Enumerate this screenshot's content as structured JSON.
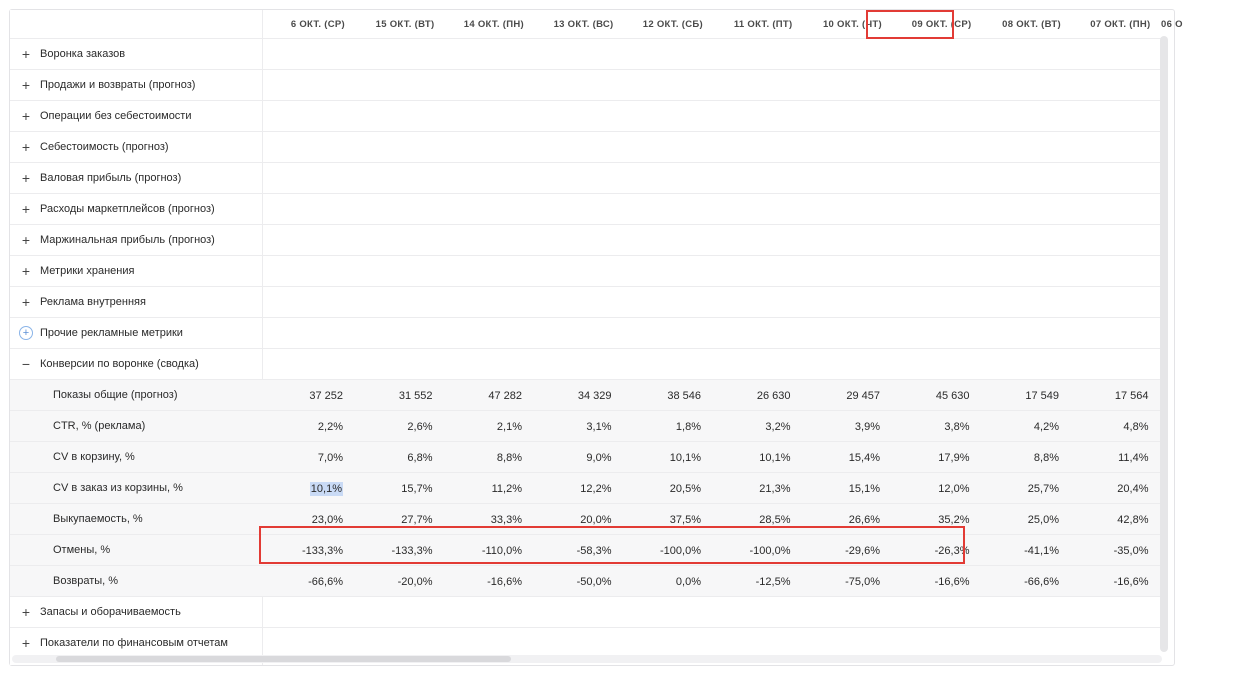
{
  "dates": [
    "6 ОКТ. (СР)",
    "15 ОКТ. (ВТ)",
    "14 ОКТ. (ПН)",
    "13 ОКТ. (ВС)",
    "12 ОКТ. (СБ)",
    "11 ОКТ. (ПТ)",
    "10 ОКТ. (ЧТ)",
    "09 ОКТ. (СР)",
    "08 ОКТ. (ВТ)",
    "07 ОКТ. (ПН)",
    "06 О"
  ],
  "groups_top": [
    {
      "label": "Воронка заказов",
      "expander": "+"
    },
    {
      "label": "Продажи и возвраты (прогноз)",
      "expander": "+"
    },
    {
      "label": "Операции без себестоимости",
      "expander": "+"
    },
    {
      "label": "Себестоимость (прогноз)",
      "expander": "+"
    },
    {
      "label": "Валовая прибыль (прогноз)",
      "expander": "+"
    },
    {
      "label": "Расходы маркетплейсов (прогноз)",
      "expander": "+"
    },
    {
      "label": "Маржинальная прибыль (прогноз)",
      "expander": "+"
    },
    {
      "label": "Метрики хранения",
      "expander": "+"
    },
    {
      "label": "Реклама внутренняя",
      "expander": "+"
    },
    {
      "label": "Прочие рекламные метрики",
      "expander": "+"
    },
    {
      "label": "Конверсии по воронке (сводка)",
      "expander": "−"
    }
  ],
  "metrics": [
    {
      "label": "Показы общие (прогноз)",
      "values": [
        "37 252",
        "31 552",
        "47 282",
        "34 329",
        "38 546",
        "26 630",
        "29 457",
        "45 630",
        "17 549",
        "17 564"
      ]
    },
    {
      "label": "CTR, % (реклама)",
      "values": [
        "2,2%",
        "2,6%",
        "2,1%",
        "3,1%",
        "1,8%",
        "3,2%",
        "3,9%",
        "3,8%",
        "4,2%",
        "4,8%"
      ]
    },
    {
      "label": "CV в корзину, %",
      "values": [
        "7,0%",
        "6,8%",
        "8,8%",
        "9,0%",
        "10,1%",
        "10,1%",
        "15,4%",
        "17,9%",
        "8,8%",
        "11,4%"
      ]
    },
    {
      "label": "CV в заказ из корзины, %",
      "values": [
        "10,1%",
        "15,7%",
        "11,2%",
        "12,2%",
        "20,5%",
        "21,3%",
        "15,1%",
        "12,0%",
        "25,7%",
        "20,4%"
      ]
    },
    {
      "label": "Выкупаемость, %",
      "values": [
        "23,0%",
        "27,7%",
        "33,3%",
        "20,0%",
        "37,5%",
        "28,5%",
        "26,6%",
        "35,2%",
        "25,0%",
        "42,8%"
      ]
    },
    {
      "label": "Отмены, %",
      "values": [
        "-133,3%",
        "-133,3%",
        "-110,0%",
        "-58,3%",
        "-100,0%",
        "-100,0%",
        "-29,6%",
        "-26,3%",
        "-41,1%",
        "-35,0%"
      ]
    },
    {
      "label": "Возвраты, %",
      "values": [
        "-66,6%",
        "-20,0%",
        "-16,6%",
        "-50,0%",
        "0,0%",
        "-12,5%",
        "-75,0%",
        "-16,6%",
        "-66,6%",
        "-16,6%"
      ]
    }
  ],
  "groups_bottom": [
    {
      "label": "Запасы и оборачиваемость",
      "expander": "+"
    },
    {
      "label": "Показатели по финансовым отчетам",
      "expander": "+"
    }
  ],
  "colors": {
    "highlight": "#e23b35",
    "selection": "#c9daf5"
  }
}
